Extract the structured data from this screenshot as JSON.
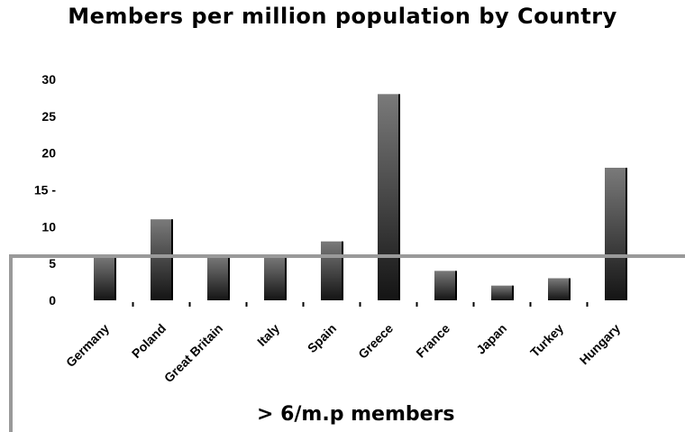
{
  "chart_data": {
    "type": "bar",
    "title": "Members per million population by Country",
    "categories": [
      "Germany",
      "Poland",
      "Great Britain",
      "Italy",
      "Spain",
      "Greece",
      "France",
      "Japan",
      "Turkey",
      "Hungary"
    ],
    "values": [
      6,
      11,
      6,
      6,
      8,
      28,
      4,
      2,
      3,
      18
    ],
    "ylim": [
      0,
      30
    ],
    "yticks": [
      0,
      5,
      10,
      15,
      20,
      25,
      30
    ],
    "ytick_labels": [
      "0",
      "5",
      "10",
      "15 -",
      "20",
      "25",
      "30"
    ],
    "threshold": 6,
    "annotation": "> 6/m.p members",
    "colors": {
      "bar_light": "#7a7a7a",
      "bar_dark": "#141414",
      "bar_edge": "#000000",
      "threshold_frame": "#9a9a9a"
    }
  }
}
